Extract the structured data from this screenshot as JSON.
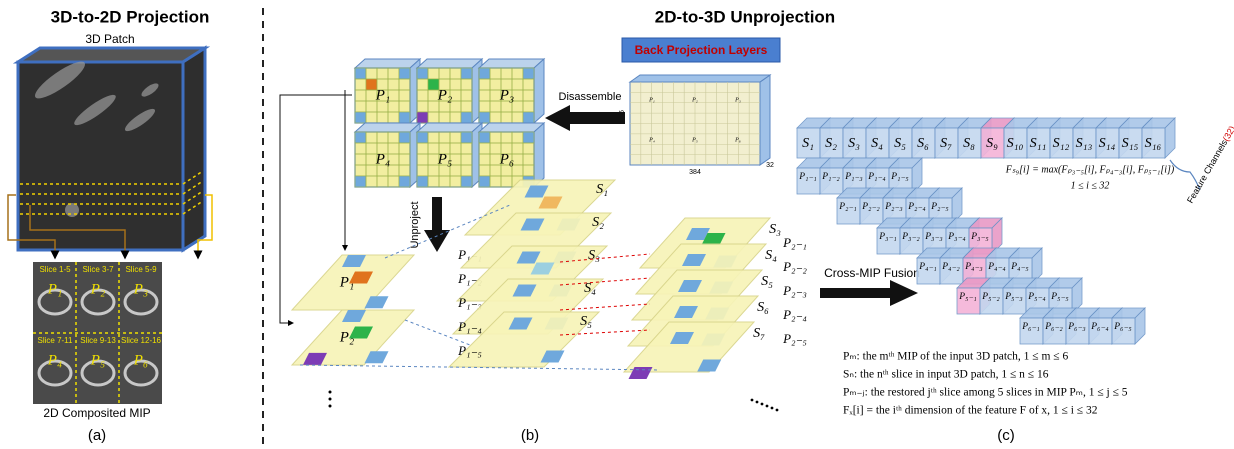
{
  "panel_a": {
    "title": "3D-to-2D Projection",
    "patch_label": "3D Patch",
    "mip_label": "2D Composited MIP",
    "caption": "(a)",
    "mip_cells": [
      {
        "slices": "Slice 1-5",
        "mip": "P₁"
      },
      {
        "slices": "Slice 3-7",
        "mip": "P₂"
      },
      {
        "slices": "Slice 5-9",
        "mip": "P₃"
      },
      {
        "slices": "Slice 7-11",
        "mip": "P₄"
      },
      {
        "slices": "Slice 9-13",
        "mip": "P₅"
      },
      {
        "slices": "Slice 12-16",
        "mip": "P₆"
      }
    ]
  },
  "panel_b": {
    "title": "2D-to-3D Unprojection",
    "layer_button": "Back Projection Layers",
    "disassemble": "Disassemble",
    "unproject": "Unproject",
    "feature_height": "236",
    "feature_width": "384",
    "feature_depth": "32",
    "feature_map_labels": [
      "P₁",
      "P₂",
      "P₃",
      "P₄",
      "P₅",
      "P₆"
    ],
    "mips": [
      "P₁",
      "P₂",
      "P₃",
      "P₄",
      "P₅",
      "P₆"
    ],
    "stack_mips": [
      "P₁",
      "P₂"
    ],
    "first_slices": [
      "S₁",
      "S₂",
      "S₃",
      "S₄",
      "S₅"
    ],
    "first_restored": [
      "P₁₋₁",
      "P₁₋₂",
      "P₁₋₃",
      "P₁₋₄",
      "P₁₋₅"
    ],
    "second_slices": [
      "S₃",
      "S₄",
      "S₅",
      "S₆",
      "S₇"
    ],
    "second_restored": [
      "P₂₋₁",
      "P₂₋₂",
      "P₂₋₃",
      "P₂₋₄",
      "P₂₋₅"
    ],
    "caption": "(b)"
  },
  "panel_c": {
    "fusion": "Cross-MIP Fusion",
    "slices": [
      "S₁",
      "S₂",
      "S₃",
      "S₄",
      "S₅",
      "S₆",
      "S₇",
      "S₈",
      "S₉",
      "S₁₀",
      "S₁₁",
      "S₁₂",
      "S₁₃",
      "S₁₄",
      "S₁₅",
      "S₁₆"
    ],
    "restored_rows": [
      [
        "P₁₋₁",
        "P₁₋₂",
        "P₁₋₃",
        "P₁₋₄",
        "P₁₋₅"
      ],
      [
        "P₂₋₁",
        "P₂₋₂",
        "P₂₋₃",
        "P₂₋₄",
        "P₂₋₅"
      ],
      [
        "P₃₋₁",
        "P₃₋₂",
        "P₃₋₃",
        "P₃₋₄",
        "P₃₋₅"
      ],
      [
        "P₄₋₁",
        "P₄₋₂",
        "P₄₋₃",
        "P₄₋₄",
        "P₄₋₅"
      ],
      [
        "P₅₋₁",
        "P₅₋₂",
        "P₅₋₃",
        "P₅₋₄",
        "P₅₋₅"
      ],
      [
        "P₆₋₁",
        "P₆₋₂",
        "P₆₋₃",
        "P₆₋₄",
        "P₆₋₅"
      ]
    ],
    "equation": "Fₛ₉[i] = max(Fₚ₃₋₅[i], Fₚ₄₋₃[i], Fₚ₅₋₁[i])",
    "equation_range": "1 ≤ i ≤ 32",
    "channels_label": "Feature Channels",
    "channels_count": "(32)",
    "legend": [
      "Pₘ: the mᵗʰ MIP of the input 3D patch, 1 ≤ m ≤ 6",
      "Sₙ: the nᵗʰ slice in input 3D patch, 1 ≤ n ≤ 16",
      "Pₘ₋ⱼ: the restored jᵗʰ slice among 5 slices in MIP Pₘ, 1 ≤ j ≤ 5",
      "Fₓ[i] = the iᵗʰ dimension of the feature F of x, 1 ≤ i ≤ 32"
    ],
    "caption": "(c)"
  }
}
